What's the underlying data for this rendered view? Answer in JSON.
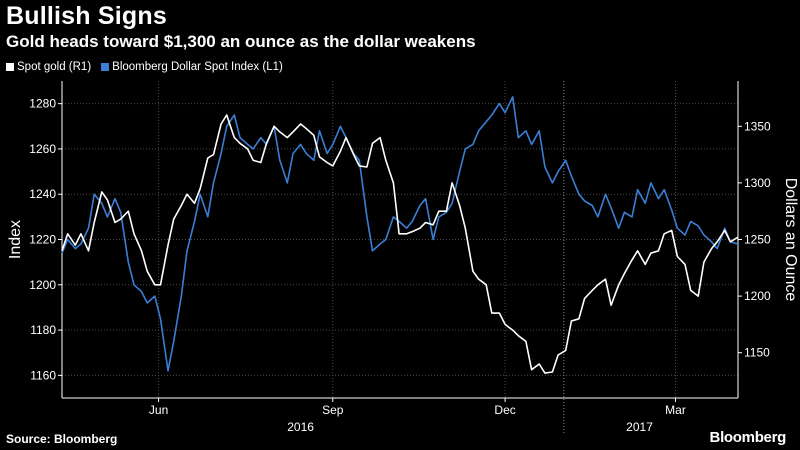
{
  "header": {
    "title": "Bullish Signs",
    "subtitle": "Gold heads toward $1,300 an ounce as the dollar weakens"
  },
  "legend": {
    "gold_label": "Spot gold (R1)",
    "dollar_label": "Bloomberg Dollar Spot Index (L1)"
  },
  "footer": {
    "source": "Source: Bloomberg",
    "logo": "Bloomberg"
  },
  "colors": {
    "background": "#000000",
    "gold_series": "#ffffff",
    "dollar_series": "#3a7fd5",
    "grid": "#4a4a4a",
    "axis_text": "#ffffff"
  },
  "chart_data": {
    "type": "line",
    "x_range": [
      "2016-04-11",
      "2017-04-03"
    ],
    "left_axis": {
      "label": "Index",
      "range": [
        1150,
        1290
      ],
      "ticks": [
        1160,
        1180,
        1200,
        1220,
        1240,
        1260,
        1280
      ]
    },
    "right_axis": {
      "label": "Dollars an Ounce",
      "range": [
        1110,
        1390
      ],
      "ticks": [
        1150,
        1200,
        1250,
        1300,
        1350
      ]
    },
    "x_ticks": [
      {
        "label": "Jun",
        "date": "2016-06-01"
      },
      {
        "label": "Sep",
        "date": "2016-09-01"
      },
      {
        "label": "Dec",
        "date": "2016-12-01"
      },
      {
        "label": "Mar",
        "date": "2017-03-01"
      }
    ],
    "year_labels": [
      {
        "label": "2016",
        "date": "2016-08-15"
      },
      {
        "label": "2017",
        "date": "2017-02-10"
      }
    ],
    "year_boundary": "2017-01-01",
    "grid": true,
    "legend_position": "top-left",
    "series": [
      {
        "name": "Spot gold (R1)",
        "axis": "right",
        "points": [
          [
            "2016-04-11",
            1240
          ],
          [
            "2016-04-14",
            1255
          ],
          [
            "2016-04-18",
            1245
          ],
          [
            "2016-04-21",
            1255
          ],
          [
            "2016-04-25",
            1240
          ],
          [
            "2016-04-28",
            1265
          ],
          [
            "2016-05-02",
            1292
          ],
          [
            "2016-05-05",
            1285
          ],
          [
            "2016-05-09",
            1265
          ],
          [
            "2016-05-12",
            1268
          ],
          [
            "2016-05-16",
            1275
          ],
          [
            "2016-05-19",
            1255
          ],
          [
            "2016-05-23",
            1240
          ],
          [
            "2016-05-26",
            1222
          ],
          [
            "2016-05-30",
            1210
          ],
          [
            "2016-06-02",
            1210
          ],
          [
            "2016-06-06",
            1245
          ],
          [
            "2016-06-09",
            1268
          ],
          [
            "2016-06-13",
            1280
          ],
          [
            "2016-06-16",
            1290
          ],
          [
            "2016-06-20",
            1282
          ],
          [
            "2016-06-23",
            1295
          ],
          [
            "2016-06-27",
            1322
          ],
          [
            "2016-06-30",
            1325
          ],
          [
            "2016-07-04",
            1352
          ],
          [
            "2016-07-07",
            1360
          ],
          [
            "2016-07-11",
            1340
          ],
          [
            "2016-07-14",
            1335
          ],
          [
            "2016-07-18",
            1330
          ],
          [
            "2016-07-21",
            1320
          ],
          [
            "2016-07-25",
            1318
          ],
          [
            "2016-07-28",
            1335
          ],
          [
            "2016-08-01",
            1350
          ],
          [
            "2016-08-04",
            1345
          ],
          [
            "2016-08-08",
            1340
          ],
          [
            "2016-08-11",
            1345
          ],
          [
            "2016-08-15",
            1352
          ],
          [
            "2016-08-18",
            1348
          ],
          [
            "2016-08-22",
            1342
          ],
          [
            "2016-08-25",
            1323
          ],
          [
            "2016-08-29",
            1318
          ],
          [
            "2016-09-01",
            1315
          ],
          [
            "2016-09-05",
            1328
          ],
          [
            "2016-09-08",
            1340
          ],
          [
            "2016-09-12",
            1325
          ],
          [
            "2016-09-15",
            1315
          ],
          [
            "2016-09-19",
            1314
          ],
          [
            "2016-09-22",
            1335
          ],
          [
            "2016-09-26",
            1340
          ],
          [
            "2016-09-29",
            1320
          ],
          [
            "2016-10-03",
            1300
          ],
          [
            "2016-10-06",
            1255
          ],
          [
            "2016-10-10",
            1255
          ],
          [
            "2016-10-13",
            1257
          ],
          [
            "2016-10-17",
            1260
          ],
          [
            "2016-10-20",
            1265
          ],
          [
            "2016-10-24",
            1263
          ],
          [
            "2016-10-27",
            1275
          ],
          [
            "2016-10-31",
            1275
          ],
          [
            "2016-11-03",
            1300
          ],
          [
            "2016-11-07",
            1280
          ],
          [
            "2016-11-10",
            1260
          ],
          [
            "2016-11-14",
            1222
          ],
          [
            "2016-11-17",
            1215
          ],
          [
            "2016-11-21",
            1210
          ],
          [
            "2016-11-24",
            1185
          ],
          [
            "2016-11-28",
            1185
          ],
          [
            "2016-12-01",
            1175
          ],
          [
            "2016-12-05",
            1170
          ],
          [
            "2016-12-08",
            1165
          ],
          [
            "2016-12-12",
            1160
          ],
          [
            "2016-12-15",
            1135
          ],
          [
            "2016-12-19",
            1140
          ],
          [
            "2016-12-22",
            1132
          ],
          [
            "2016-12-26",
            1133
          ],
          [
            "2016-12-29",
            1148
          ],
          [
            "2017-01-02",
            1152
          ],
          [
            "2017-01-05",
            1178
          ],
          [
            "2017-01-09",
            1180
          ],
          [
            "2017-01-12",
            1198
          ],
          [
            "2017-01-16",
            1205
          ],
          [
            "2017-01-19",
            1210
          ],
          [
            "2017-01-23",
            1215
          ],
          [
            "2017-01-26",
            1192
          ],
          [
            "2017-01-30",
            1210
          ],
          [
            "2017-02-02",
            1220
          ],
          [
            "2017-02-06",
            1232
          ],
          [
            "2017-02-09",
            1240
          ],
          [
            "2017-02-13",
            1228
          ],
          [
            "2017-02-16",
            1238
          ],
          [
            "2017-02-20",
            1240
          ],
          [
            "2017-02-23",
            1255
          ],
          [
            "2017-02-27",
            1258
          ],
          [
            "2017-03-02",
            1235
          ],
          [
            "2017-03-06",
            1228
          ],
          [
            "2017-03-09",
            1205
          ],
          [
            "2017-03-13",
            1200
          ],
          [
            "2017-03-16",
            1230
          ],
          [
            "2017-03-20",
            1242
          ],
          [
            "2017-03-23",
            1248
          ],
          [
            "2017-03-27",
            1258
          ],
          [
            "2017-03-30",
            1248
          ],
          [
            "2017-04-03",
            1252
          ]
        ]
      },
      {
        "name": "Bloomberg Dollar Spot Index (L1)",
        "axis": "left",
        "points": [
          [
            "2016-04-11",
            1214
          ],
          [
            "2016-04-14",
            1220
          ],
          [
            "2016-04-18",
            1216
          ],
          [
            "2016-04-21",
            1218
          ],
          [
            "2016-04-25",
            1225
          ],
          [
            "2016-04-28",
            1240
          ],
          [
            "2016-05-02",
            1236
          ],
          [
            "2016-05-05",
            1230
          ],
          [
            "2016-05-09",
            1238
          ],
          [
            "2016-05-12",
            1232
          ],
          [
            "2016-05-16",
            1210
          ],
          [
            "2016-05-19",
            1200
          ],
          [
            "2016-05-23",
            1197
          ],
          [
            "2016-05-26",
            1192
          ],
          [
            "2016-05-30",
            1195
          ],
          [
            "2016-06-02",
            1185
          ],
          [
            "2016-06-06",
            1162
          ],
          [
            "2016-06-09",
            1175
          ],
          [
            "2016-06-13",
            1195
          ],
          [
            "2016-06-16",
            1215
          ],
          [
            "2016-06-20",
            1228
          ],
          [
            "2016-06-23",
            1240
          ],
          [
            "2016-06-27",
            1230
          ],
          [
            "2016-06-30",
            1245
          ],
          [
            "2016-07-04",
            1258
          ],
          [
            "2016-07-07",
            1270
          ],
          [
            "2016-07-11",
            1275
          ],
          [
            "2016-07-14",
            1265
          ],
          [
            "2016-07-18",
            1262
          ],
          [
            "2016-07-21",
            1260
          ],
          [
            "2016-07-25",
            1265
          ],
          [
            "2016-07-28",
            1262
          ],
          [
            "2016-08-01",
            1270
          ],
          [
            "2016-08-04",
            1255
          ],
          [
            "2016-08-08",
            1245
          ],
          [
            "2016-08-11",
            1258
          ],
          [
            "2016-08-15",
            1262
          ],
          [
            "2016-08-18",
            1258
          ],
          [
            "2016-08-22",
            1255
          ],
          [
            "2016-08-25",
            1268
          ],
          [
            "2016-08-29",
            1258
          ],
          [
            "2016-09-01",
            1262
          ],
          [
            "2016-09-05",
            1270
          ],
          [
            "2016-09-08",
            1265
          ],
          [
            "2016-09-12",
            1258
          ],
          [
            "2016-09-15",
            1255
          ],
          [
            "2016-09-19",
            1230
          ],
          [
            "2016-09-22",
            1215
          ],
          [
            "2016-09-26",
            1218
          ],
          [
            "2016-09-29",
            1220
          ],
          [
            "2016-10-03",
            1230
          ],
          [
            "2016-10-06",
            1228
          ],
          [
            "2016-10-10",
            1225
          ],
          [
            "2016-10-13",
            1228
          ],
          [
            "2016-10-17",
            1235
          ],
          [
            "2016-10-20",
            1238
          ],
          [
            "2016-10-24",
            1220
          ],
          [
            "2016-10-27",
            1230
          ],
          [
            "2016-10-31",
            1232
          ],
          [
            "2016-11-03",
            1236
          ],
          [
            "2016-11-07",
            1250
          ],
          [
            "2016-11-10",
            1260
          ],
          [
            "2016-11-14",
            1262
          ],
          [
            "2016-11-17",
            1268
          ],
          [
            "2016-11-21",
            1272
          ],
          [
            "2016-11-24",
            1275
          ],
          [
            "2016-11-28",
            1280
          ],
          [
            "2016-12-01",
            1276
          ],
          [
            "2016-12-05",
            1283
          ],
          [
            "2016-12-08",
            1265
          ],
          [
            "2016-12-12",
            1268
          ],
          [
            "2016-12-15",
            1262
          ],
          [
            "2016-12-19",
            1268
          ],
          [
            "2016-12-22",
            1252
          ],
          [
            "2016-12-26",
            1245
          ],
          [
            "2016-12-29",
            1250
          ],
          [
            "2017-01-02",
            1255
          ],
          [
            "2017-01-05",
            1248
          ],
          [
            "2017-01-09",
            1240
          ],
          [
            "2017-01-12",
            1237
          ],
          [
            "2017-01-16",
            1235
          ],
          [
            "2017-01-19",
            1230
          ],
          [
            "2017-01-23",
            1240
          ],
          [
            "2017-01-26",
            1234
          ],
          [
            "2017-01-30",
            1225
          ],
          [
            "2017-02-02",
            1232
          ],
          [
            "2017-02-06",
            1230
          ],
          [
            "2017-02-09",
            1242
          ],
          [
            "2017-02-13",
            1236
          ],
          [
            "2017-02-16",
            1245
          ],
          [
            "2017-02-20",
            1238
          ],
          [
            "2017-02-23",
            1242
          ],
          [
            "2017-02-27",
            1233
          ],
          [
            "2017-03-02",
            1225
          ],
          [
            "2017-03-06",
            1222
          ],
          [
            "2017-03-09",
            1228
          ],
          [
            "2017-03-13",
            1226
          ],
          [
            "2017-03-16",
            1222
          ],
          [
            "2017-03-20",
            1219
          ],
          [
            "2017-03-23",
            1216
          ],
          [
            "2017-03-27",
            1225
          ],
          [
            "2017-03-30",
            1219
          ],
          [
            "2017-04-03",
            1218
          ]
        ]
      }
    ]
  }
}
